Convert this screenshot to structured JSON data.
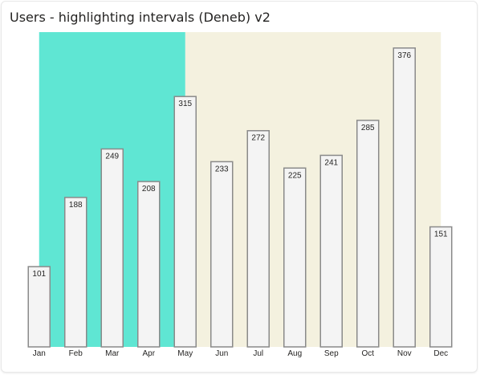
{
  "visual": {
    "title": "Users - highlighting intervals (Deneb) v2"
  },
  "chart_data": {
    "type": "bar",
    "title": "Users - highlighting intervals (Deneb) v2",
    "xlabel": "",
    "ylabel": "",
    "categories": [
      "Jan",
      "Feb",
      "Mar",
      "Apr",
      "May",
      "Jun",
      "Jul",
      "Aug",
      "Sep",
      "Oct",
      "Nov",
      "Dec"
    ],
    "values": [
      101,
      188,
      249,
      208,
      315,
      233,
      272,
      225,
      241,
      285,
      376,
      151
    ],
    "ylim": [
      0,
      396
    ],
    "grid": false,
    "legend": "none",
    "highlight_intervals": [
      {
        "from": "Jan",
        "to": "May",
        "color": "#5fe6d3"
      },
      {
        "from": "May",
        "to": "Dec",
        "color": "#f4f1df"
      }
    ],
    "bar_fill": "#f4f4f4",
    "bar_stroke": "#8a8a8a"
  }
}
